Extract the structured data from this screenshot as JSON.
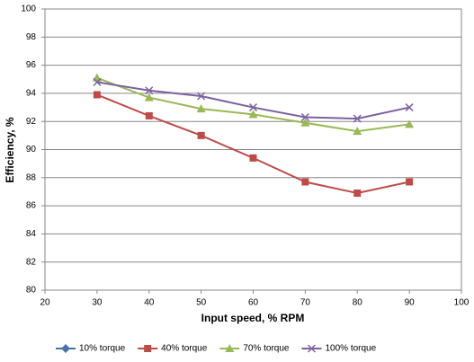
{
  "chart_data": {
    "type": "line",
    "x_label": "Input speed, % RPM",
    "y_label": "Efficiency, %",
    "x": [
      30,
      40,
      50,
      60,
      70,
      80,
      90
    ],
    "series": [
      {
        "name": "10% torque",
        "color": "#4572a7",
        "marker": "diamond",
        "values": [
          null,
          null,
          null,
          null,
          null,
          null,
          null
        ]
      },
      {
        "name": "40% torque",
        "color": "#be4b48",
        "marker": "square",
        "values": [
          93.9,
          92.4,
          91.0,
          89.4,
          87.7,
          86.9,
          87.7
        ]
      },
      {
        "name": "70% torque",
        "color": "#98b954",
        "marker": "triangle",
        "values": [
          95.1,
          93.7,
          92.9,
          92.5,
          91.9,
          91.3,
          91.8
        ]
      },
      {
        "name": "100% torque",
        "color": "#7d60a0",
        "marker": "x",
        "values": [
          94.8,
          94.2,
          93.8,
          93.0,
          92.3,
          92.2,
          93.0
        ]
      }
    ],
    "xlim": [
      20,
      100
    ],
    "xticks": [
      20,
      30,
      40,
      50,
      60,
      70,
      80,
      90,
      100
    ],
    "ylim": [
      80,
      100
    ],
    "yticks": [
      80,
      82,
      84,
      86,
      88,
      90,
      92,
      94,
      96,
      98,
      100
    ],
    "grid": true,
    "legend": "bottom"
  }
}
